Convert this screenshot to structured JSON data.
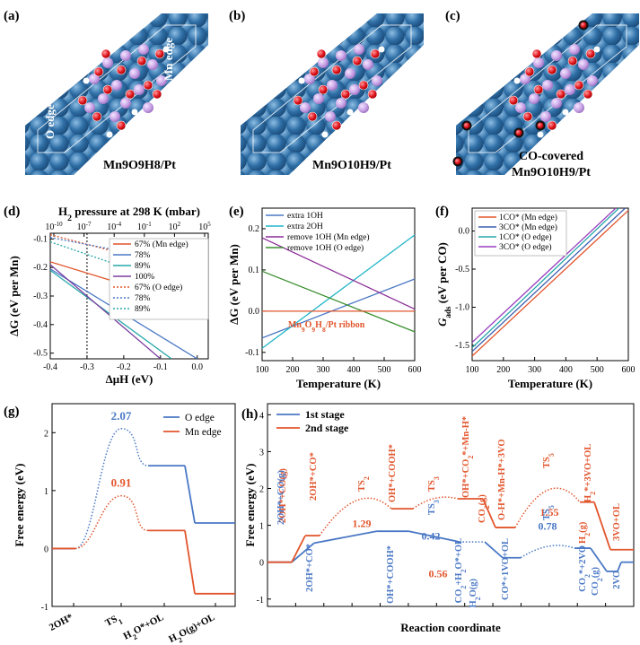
{
  "structures": [
    {
      "panel": "(a)",
      "caption": "Mn9O9H8/Pt",
      "labels": [
        "O edge",
        "Mn edge"
      ]
    },
    {
      "panel": "(b)",
      "caption": "Mn9O10H9/Pt",
      "labels": []
    },
    {
      "panel": "(c)",
      "caption": "Mn9O10H9/Pt",
      "labels": [],
      "caption_prefix": "CO-covered"
    }
  ],
  "colors": {
    "slab": "#2f6fa6",
    "slab_light": "#5b97c9",
    "mn": "#c9a4e6",
    "o": "#e0141e",
    "h": "#ffffff"
  },
  "chart_data": [
    {
      "panel": "(d)",
      "type": "line",
      "xlabel": "ΔμH (eV)",
      "ylabel": "ΔG (eV per Mn)",
      "top_label": "H2 pressure at 298 K (mbar)",
      "top_ticks": [
        "10-10",
        "10-7",
        "10-4",
        "10-1",
        "102",
        "105"
      ],
      "xlim": [
        -0.4,
        0.03
      ],
      "ylim": [
        -0.52,
        -0.08
      ],
      "xticks": [
        -0.4,
        -0.3,
        -0.2,
        -0.1,
        0.0
      ],
      "yticks": [
        -0.1,
        -0.2,
        -0.3,
        -0.4,
        -0.5
      ],
      "vline": -0.3,
      "series": [
        {
          "name": "67% (Mn edge)",
          "color": "#e2552c",
          "dash": false,
          "x": [
            -0.4,
            0.03
          ],
          "y": [
            -0.18,
            -0.35
          ]
        },
        {
          "name": "78%",
          "color": "#4a78c5",
          "dash": false,
          "x": [
            -0.4,
            0.0
          ],
          "y": [
            -0.205,
            -0.52
          ]
        },
        {
          "name": "89%",
          "color": "#27a7a8",
          "dash": false,
          "x": [
            -0.4,
            -0.07
          ],
          "y": [
            -0.21,
            -0.52
          ]
        },
        {
          "name": "100%",
          "color": "#7b3fa0",
          "dash": false,
          "x": [
            -0.4,
            -0.1
          ],
          "y": [
            -0.19,
            -0.52
          ]
        },
        {
          "name": "67% (O edge)",
          "color": "#e2552c",
          "dash": true,
          "x": [
            -0.4,
            0.03
          ],
          "y": [
            -0.085,
            -0.23
          ]
        },
        {
          "name": "78%",
          "color": "#4a78c5",
          "dash": true,
          "x": [
            -0.4,
            0.03
          ],
          "y": [
            -0.095,
            -0.2
          ]
        },
        {
          "name": "89%",
          "color": "#27a7a8",
          "dash": true,
          "x": [
            -0.4,
            0.03
          ],
          "y": [
            -0.11,
            -0.3
          ]
        }
      ]
    },
    {
      "panel": "(e)",
      "type": "line",
      "xlabel": "Temperature (K)",
      "ylabel": "ΔG (eV per Mn)",
      "xlim": [
        100,
        600
      ],
      "ylim": [
        -0.12,
        0.25
      ],
      "xticks": [
        100,
        200,
        300,
        400,
        500,
        600
      ],
      "yticks": [
        0.2,
        0.1,
        0.0,
        -0.1
      ],
      "annotation": "Mn9O9H8/Pt ribbon",
      "series": [
        {
          "name": "extra 1OH",
          "color": "#4a78c5",
          "x": [
            100,
            600
          ],
          "y": [
            -0.065,
            0.078
          ]
        },
        {
          "name": "extra 2OH",
          "color": "#22b5c8",
          "x": [
            100,
            600
          ],
          "y": [
            -0.09,
            0.185
          ]
        },
        {
          "name": "remove 1OH (Mn edge)",
          "color": "#8a2d96",
          "x": [
            100,
            600
          ],
          "y": [
            0.178,
            0.005
          ]
        },
        {
          "name": "remove 1OH (O edge)",
          "color": "#3b8f2f",
          "x": [
            100,
            600
          ],
          "y": [
            0.097,
            -0.05
          ]
        },
        {
          "name": "Mn9O9H8/Pt ribbon",
          "color": "#e2552c",
          "x": [
            100,
            600
          ],
          "y": [
            0.0,
            0.0
          ]
        }
      ]
    },
    {
      "panel": "(f)",
      "type": "line",
      "xlabel": "Temperature (K)",
      "ylabel": "Gads (eV per CO)",
      "xlim": [
        100,
        600
      ],
      "ylim": [
        -1.7,
        0.3
      ],
      "xticks": [
        100,
        200,
        300,
        400,
        500,
        600
      ],
      "yticks": [
        0.0,
        -0.5,
        -1.0,
        -1.5
      ],
      "series": [
        {
          "name": "1CO* (Mn edge)",
          "color": "#e2552c",
          "x": [
            100,
            600
          ],
          "y": [
            -1.64,
            0.27
          ]
        },
        {
          "name": "3CO* (Mn edge)",
          "color": "#3b5fb0",
          "x": [
            100,
            590
          ],
          "y": [
            -1.58,
            0.3
          ]
        },
        {
          "name": "1CO* (O edge)",
          "color": "#27a7a8",
          "x": [
            100,
            570
          ],
          "y": [
            -1.53,
            0.3
          ]
        },
        {
          "name": "3CO* (O edge)",
          "color": "#9a3fbf",
          "x": [
            100,
            560
          ],
          "y": [
            -1.46,
            0.3
          ]
        }
      ]
    },
    {
      "panel": "(g)",
      "type": "line",
      "ylabel": "Free energy (eV)",
      "ylim": [
        -1.0,
        2.5
      ],
      "yticks": [
        2,
        1,
        0,
        -1
      ],
      "categories": [
        "2OH*",
        "TS1",
        "H2O*+OL",
        "H2O(g)+OL"
      ],
      "series": [
        {
          "name": "O edge",
          "color": "#4a78c5",
          "values": [
            0.0,
            2.07,
            1.43,
            0.44
          ],
          "ts_label": "2.07"
        },
        {
          "name": "Mn edge",
          "color": "#e2552c",
          "values": [
            0.0,
            0.91,
            0.31,
            -0.78
          ],
          "ts_label": "0.91"
        }
      ]
    },
    {
      "panel": "(h)",
      "type": "line",
      "xlabel": "Reaction coordinate",
      "ylabel": "Free energy (eV)",
      "ylim": [
        -1.2,
        4.3
      ],
      "yticks": [
        4,
        3,
        2,
        1,
        0,
        -1
      ],
      "series": [
        {
          "name": "1st stage",
          "color": "#4a78c5",
          "values": [
            0.0,
            0.52,
            0.84,
            0.55,
            0.57,
            0.42,
            0.38,
            0.0
          ]
        },
        {
          "name": "2nd stage",
          "color": "#e2552c",
          "values": [
            0.0,
            0.72,
            1.45,
            1.43,
            1.72,
            0.94,
            1.63,
            0.34
          ]
        }
      ],
      "labels_2nd": [
        "2OH*+CO(g)",
        "2OH*+CO*",
        "TS2",
        "OH*+COOH*",
        "TS3",
        "OH*+CO2*+Mn-H*",
        "CO2(g)",
        "O-H*+Mn-H*+3VO",
        "TS5",
        "H2*+3VO+OL",
        "H2(g)",
        "3VO+OL"
      ],
      "labels_1st": [
        "2OH*+CO(g)",
        "2OH*+CO*",
        "OH*+COOH*",
        "TS3",
        "CO2+H2O*+OL",
        "H2O(g)",
        "CO*+1VO+OL",
        "TS5",
        "CO2*+2VO",
        "CO2(g)",
        "2VO"
      ],
      "barriers_2nd": [
        "1.29",
        "0.56",
        "1.55"
      ],
      "barriers_1st": [
        "0.42",
        "0.78"
      ]
    }
  ]
}
